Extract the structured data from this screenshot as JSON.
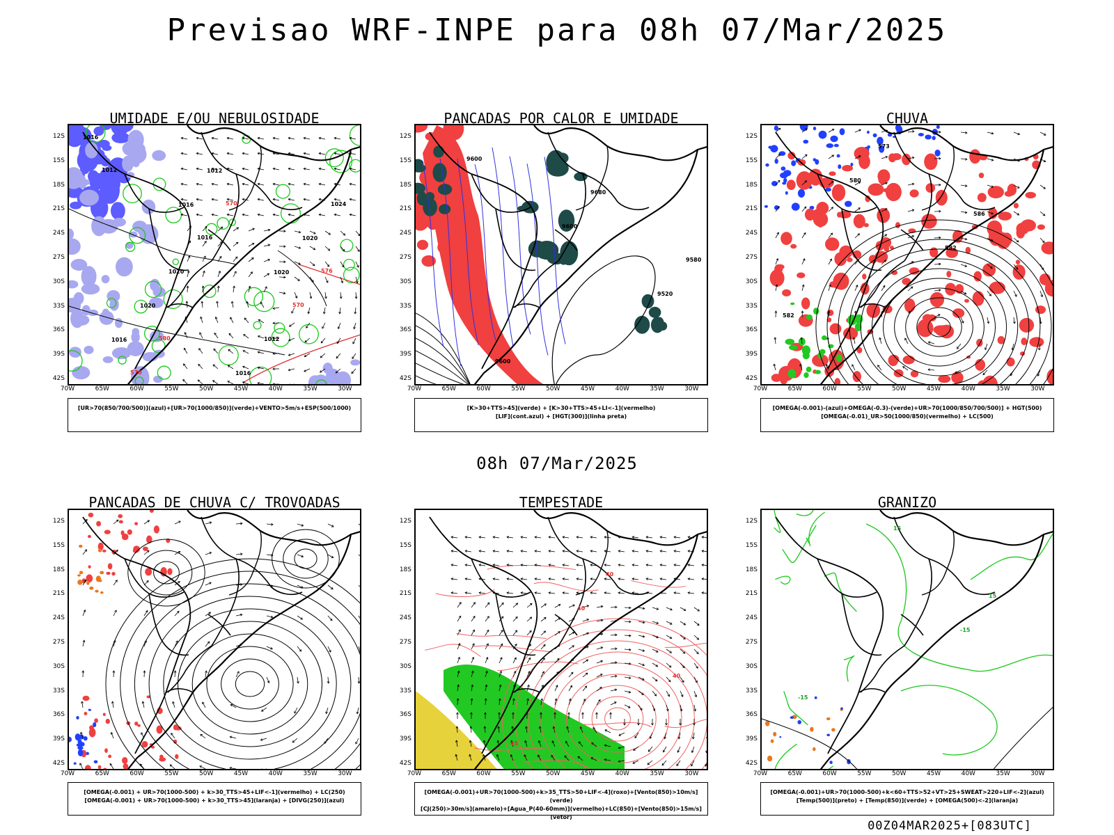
{
  "title": "Previsao WRF-INPE  para 08h 07/Mar/2025",
  "mid_title": "08h 07/Mar/2025",
  "footer": "00Z04MAR2025+[083UTC]",
  "lat_labels": [
    "12S",
    "15S",
    "18S",
    "21S",
    "24S",
    "27S",
    "30S",
    "33S",
    "36S",
    "39S",
    "42S"
  ],
  "lon_labels": [
    "70W",
    "65W",
    "60W",
    "55W",
    "50W",
    "45W",
    "40W",
    "35W",
    "30W"
  ],
  "panels": [
    {
      "id": "p1",
      "title": "UMIDADE E/OU NEBULOSIDADE",
      "legend": [
        "[UR>70(850/700/500)](azul)+[UR>70(1000/850)](verde)+VENTO>5m/s+ESP(500/1000)"
      ],
      "labels": [
        "1016",
        "1016",
        "1020",
        "1016",
        "1012",
        "1020",
        "1020",
        "1016",
        "1024",
        "1020",
        "1012",
        "1012",
        "1016",
        "570",
        "570",
        "570",
        "576",
        "580"
      ]
    },
    {
      "id": "p2",
      "title": "PANCADAS POR CALOR E UMIDADE",
      "legend": [
        "[K>30+TTS>45](verde) + [K>30+TTS>45+LI<-1](vermelho)",
        "[LIF](cont.azul) + [HGT(300)](linha preta)"
      ],
      "labels": [
        "9600",
        "9600",
        "9520",
        "9600",
        "9680",
        "9580"
      ]
    },
    {
      "id": "p3",
      "title": "CHUVA",
      "legend": [
        "[OMEGA(-0.001)-(azul)+OMEGA(-0.3)-(verde)+UR>70(1000/850/700/500)] + HGT(500)",
        "[OMEGA(-0.01)_UR>50(1000/850)(vermelho) + LC(500)"
      ],
      "labels": [
        "580",
        "582",
        "582",
        "573",
        "586"
      ]
    },
    {
      "id": "p4",
      "title": "PANCADAS DE CHUVA C/ TROVOADAS",
      "legend": [
        "[OMEGA(-0.001) + UR>70(1000-500) + k>30_TTS>45+LIF<-1](vermelho) + LC(250)",
        "[OMEGA(-0.001) + UR>70(1000-500) + k>30_TTS>45](laranja) + [DIVG(250)](azul)"
      ],
      "labels": []
    },
    {
      "id": "p5",
      "title": "TEMPESTADE",
      "legend": [
        "[OMEGA(-0.001)+UR>70(1000-500)+k>35_TTS>50+LIF<-4](roxo)+[Vento(850)>10m/s](verde)",
        "[CJ(250)>30m/s](amarelo)+[Agua_P(40-60mm)](vermelho)+LC(850)+[Vento(850)>15m/s](vetor)"
      ],
      "labels": [
        "40",
        "40",
        "45",
        "40"
      ]
    },
    {
      "id": "p6",
      "title": "GRANIZO",
      "legend": [
        "[OMEGA(-0.001)+UR>70(1000-500)+k<60+TTS>52+VT>25+SWEAT>220+LIF<-2](azul)",
        "[Temp(500)](preto) + [Temp(850)](verde) + [OMEGA(500)<-2](laranja)"
      ],
      "labels": [
        "-15",
        "-15",
        "15",
        "15"
      ]
    }
  ]
}
